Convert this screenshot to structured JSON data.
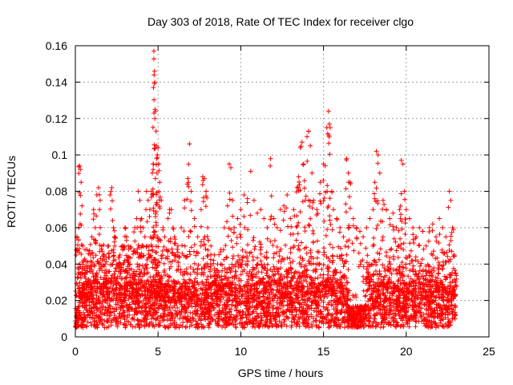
{
  "chart_data": {
    "type": "scatter",
    "title": "Day 303 of 2018, Rate Of TEC Index for receiver clgo",
    "xlabel": "GPS time / hours",
    "ylabel": "ROTI / TECUs",
    "xlim": [
      0,
      25
    ],
    "ylim": [
      0,
      0.16
    ],
    "x_ticks": [
      0,
      5,
      10,
      15,
      20,
      25
    ],
    "x_tick_labels": [
      "0",
      "5",
      "10",
      "15",
      "20",
      "25"
    ],
    "y_ticks": [
      0,
      0.02,
      0.04,
      0.06,
      0.08,
      0.1,
      0.12,
      0.14,
      0.16
    ],
    "y_tick_labels": [
      "0",
      "0.02",
      "0.04",
      "0.06",
      "0.08",
      "0.1",
      "0.12",
      "0.14",
      "0.16"
    ],
    "grid": true,
    "marker": "plus",
    "color": "#ff0000",
    "series": [
      {
        "values": [
          [
            0.05,
            0.045
          ],
          [
            0.1,
            0.055
          ],
          [
            0.15,
            0.038
          ],
          [
            0.2,
            0.06
          ],
          [
            0.25,
            0.094
          ],
          [
            0.3,
            0.092
          ],
          [
            0.35,
            0.085
          ],
          [
            0.4,
            0.072
          ],
          [
            0.45,
            0.05
          ],
          [
            0.5,
            0.042
          ],
          [
            0.6,
            0.035
          ],
          [
            0.7,
            0.048
          ],
          [
            0.8,
            0.03
          ],
          [
            0.9,
            0.045
          ],
          [
            1.0,
            0.055
          ],
          [
            1.1,
            0.07
          ],
          [
            1.2,
            0.06
          ],
          [
            1.3,
            0.078
          ],
          [
            1.4,
            0.082
          ],
          [
            1.5,
            0.075
          ],
          [
            1.6,
            0.05
          ],
          [
            1.7,
            0.045
          ],
          [
            1.8,
            0.04
          ],
          [
            1.9,
            0.032
          ],
          [
            2.0,
            0.05
          ],
          [
            2.1,
            0.078
          ],
          [
            2.2,
            0.082
          ],
          [
            2.3,
            0.06
          ],
          [
            2.4,
            0.055
          ],
          [
            2.5,
            0.04
          ],
          [
            2.7,
            0.045
          ],
          [
            2.9,
            0.05
          ],
          [
            3.0,
            0.06
          ],
          [
            3.1,
            0.055
          ],
          [
            3.2,
            0.05
          ],
          [
            3.3,
            0.04
          ],
          [
            3.5,
            0.035
          ],
          [
            3.6,
            0.06
          ],
          [
            3.7,
            0.065
          ],
          [
            3.8,
            0.08
          ],
          [
            3.9,
            0.075
          ],
          [
            4.0,
            0.065
          ],
          [
            4.1,
            0.06
          ],
          [
            4.2,
            0.055
          ],
          [
            4.3,
            0.08
          ],
          [
            4.4,
            0.075
          ],
          [
            4.5,
            0.07
          ],
          [
            4.6,
            0.08
          ],
          [
            4.65,
            0.09
          ],
          [
            4.7,
            0.095
          ],
          [
            4.72,
            0.137
          ],
          [
            4.75,
            0.157
          ],
          [
            4.78,
            0.146
          ],
          [
            4.8,
            0.14
          ],
          [
            4.82,
            0.125
          ],
          [
            4.85,
            0.124
          ],
          [
            4.88,
            0.113
          ],
          [
            4.9,
            0.105
          ],
          [
            4.95,
            0.1
          ],
          [
            5.0,
            0.104
          ],
          [
            5.05,
            0.095
          ],
          [
            5.1,
            0.085
          ],
          [
            5.2,
            0.075
          ],
          [
            5.3,
            0.06
          ],
          [
            5.4,
            0.055
          ],
          [
            5.5,
            0.048
          ],
          [
            5.6,
            0.065
          ],
          [
            5.7,
            0.07
          ],
          [
            5.8,
            0.07
          ],
          [
            5.9,
            0.06
          ],
          [
            6.0,
            0.055
          ],
          [
            6.2,
            0.05
          ],
          [
            6.4,
            0.06
          ],
          [
            6.6,
            0.075
          ],
          [
            6.8,
            0.087
          ],
          [
            6.9,
            0.106
          ],
          [
            7.0,
            0.08
          ],
          [
            7.2,
            0.065
          ],
          [
            7.4,
            0.055
          ],
          [
            7.6,
            0.07
          ],
          [
            7.7,
            0.088
          ],
          [
            7.8,
            0.087
          ],
          [
            7.9,
            0.08
          ],
          [
            8.0,
            0.06
          ],
          [
            8.2,
            0.05
          ],
          [
            8.4,
            0.045
          ],
          [
            8.6,
            0.04
          ],
          [
            8.8,
            0.048
          ],
          [
            9.0,
            0.06
          ],
          [
            9.2,
            0.072
          ],
          [
            9.3,
            0.095
          ],
          [
            9.4,
            0.093
          ],
          [
            9.5,
            0.075
          ],
          [
            9.6,
            0.06
          ],
          [
            9.8,
            0.065
          ],
          [
            10.0,
            0.07
          ],
          [
            10.2,
            0.078
          ],
          [
            10.4,
            0.076
          ],
          [
            10.6,
            0.091
          ],
          [
            10.8,
            0.075
          ],
          [
            11.0,
            0.068
          ],
          [
            11.2,
            0.07
          ],
          [
            11.4,
            0.065
          ],
          [
            11.6,
            0.06
          ],
          [
            11.8,
            0.098
          ],
          [
            12.0,
            0.065
          ],
          [
            12.2,
            0.06
          ],
          [
            12.4,
            0.07
          ],
          [
            12.6,
            0.072
          ],
          [
            12.8,
            0.078
          ],
          [
            13.0,
            0.065
          ],
          [
            13.2,
            0.07
          ],
          [
            13.4,
            0.082
          ],
          [
            13.5,
            0.088
          ],
          [
            13.6,
            0.104
          ],
          [
            13.7,
            0.107
          ],
          [
            13.8,
            0.095
          ],
          [
            13.9,
            0.075
          ],
          [
            14.0,
            0.11
          ],
          [
            14.1,
            0.113
          ],
          [
            14.2,
            0.105
          ],
          [
            14.3,
            0.09
          ],
          [
            14.4,
            0.075
          ],
          [
            14.6,
            0.07
          ],
          [
            14.8,
            0.085
          ],
          [
            15.0,
            0.095
          ],
          [
            15.1,
            0.094
          ],
          [
            15.2,
            0.115
          ],
          [
            15.3,
            0.124
          ],
          [
            15.35,
            0.117
          ],
          [
            15.4,
            0.115
          ],
          [
            15.5,
            0.08
          ],
          [
            15.6,
            0.07
          ],
          [
            15.8,
            0.065
          ],
          [
            16.0,
            0.06
          ],
          [
            16.2,
            0.055
          ],
          [
            16.4,
            0.098
          ],
          [
            16.5,
            0.09
          ],
          [
            16.6,
            0.085
          ],
          [
            16.8,
            0.065
          ],
          [
            17.0,
            0.06
          ],
          [
            17.2,
            0.058
          ],
          [
            17.4,
            0.055
          ],
          [
            17.6,
            0.06
          ],
          [
            17.8,
            0.065
          ],
          [
            18.0,
            0.07
          ],
          [
            18.1,
            0.085
          ],
          [
            18.2,
            0.102
          ],
          [
            18.3,
            0.1
          ],
          [
            18.4,
            0.09
          ],
          [
            18.6,
            0.075
          ],
          [
            18.8,
            0.07
          ],
          [
            19.0,
            0.065
          ],
          [
            19.2,
            0.068
          ],
          [
            19.4,
            0.06
          ],
          [
            19.6,
            0.07
          ],
          [
            19.7,
            0.097
          ],
          [
            19.8,
            0.095
          ],
          [
            19.9,
            0.08
          ],
          [
            20.0,
            0.07
          ],
          [
            20.2,
            0.065
          ],
          [
            20.4,
            0.06
          ],
          [
            20.6,
            0.055
          ],
          [
            20.8,
            0.06
          ],
          [
            21.0,
            0.058
          ],
          [
            21.2,
            0.05
          ],
          [
            21.4,
            0.06
          ],
          [
            21.6,
            0.062
          ],
          [
            21.8,
            0.055
          ],
          [
            22.0,
            0.065
          ],
          [
            22.2,
            0.06
          ],
          [
            22.4,
            0.055
          ],
          [
            22.6,
            0.08
          ],
          [
            22.7,
            0.075
          ],
          [
            22.8,
            0.06
          ],
          [
            22.9,
            0.045
          ],
          [
            23.0,
            0.035
          ]
        ]
      }
    ],
    "band": {
      "x_start": 0.0,
      "x_end": 23.0,
      "base_low": 0.005,
      "base_high": 0.03,
      "density_per_hour": 170,
      "quiet_intervals": [
        [
          0.0,
          0.2
        ],
        [
          16.5,
          17.5
        ]
      ]
    }
  }
}
